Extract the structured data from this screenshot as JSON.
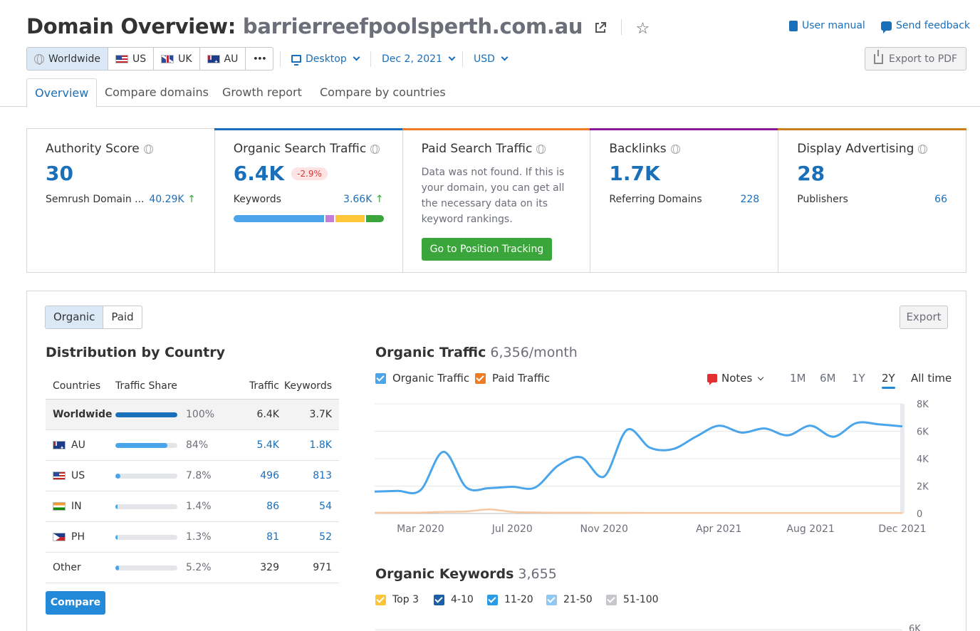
{
  "header": {
    "title_prefix": "Domain Overview:",
    "domain": "barrierreefpoolsperth.com.au",
    "user_manual": "User manual",
    "send_feedback": "Send feedback",
    "export_pdf": "Export to PDF"
  },
  "regions": [
    {
      "label": "Worldwide",
      "icon": "globe-icon",
      "active": true
    },
    {
      "label": "US",
      "icon": "flag-us"
    },
    {
      "label": "UK",
      "icon": "flag-uk"
    },
    {
      "label": "AU",
      "icon": "flag-au"
    },
    {
      "label": "•••",
      "icon": "more-icon"
    }
  ],
  "filters": {
    "device": "Desktop",
    "date": "Dec 2, 2021",
    "currency": "USD"
  },
  "tabs": [
    "Overview",
    "Compare domains",
    "Growth report",
    "Compare by countries"
  ],
  "cards": {
    "authority": {
      "title": "Authority Score",
      "value": "30",
      "row_label": "Semrush Domain ...",
      "row_value": "40.29K",
      "row_arrow": "↑"
    },
    "organic": {
      "title": "Organic Search Traffic",
      "value": "6.4K",
      "change": "-2.9%",
      "row_label": "Keywords",
      "row_value": "3.66K",
      "row_arrow": "↑"
    },
    "paid": {
      "title": "Paid Search Traffic",
      "text": "Data was not found. If this is your domain, you can get all the necessary data on its keyword rankings.",
      "button": "Go to Position Tracking"
    },
    "backlinks": {
      "title": "Backlinks",
      "value": "1.7K",
      "row_label": "Referring Domains",
      "row_value": "228"
    },
    "display": {
      "title": "Display Advertising",
      "value": "28",
      "row_label": "Publishers",
      "row_value": "66"
    }
  },
  "colors": {
    "accent": "#1a6fb9",
    "organic_bar": "#1a6fb9",
    "paid_bar": "#f07b25",
    "backlinks_bar": "#8b1a9a",
    "display_bar": "#c67f1a",
    "keyword_stack": [
      "#4aa5ea",
      "#c57ed8",
      "#fcc53a",
      "#3aa53a"
    ]
  },
  "keyword_stack_share": [
    0.62,
    0.06,
    0.2,
    0.12
  ],
  "panel": {
    "seg": [
      "Organic",
      "Paid"
    ],
    "export": "Export",
    "dist_title": "Distribution by Country",
    "compare": "Compare",
    "columns": [
      "Countries",
      "Traffic Share",
      "Traffic",
      "Keywords"
    ],
    "rows": [
      {
        "country": "Worldwide",
        "flag": "",
        "share": 1.0,
        "pct": "100%",
        "traffic": "6.4K",
        "keywords": "3.7K",
        "bar_color": "#1a6fb9"
      },
      {
        "country": "AU",
        "flag": "flag-au",
        "share": 0.84,
        "pct": "84%",
        "traffic": "5.4K",
        "keywords": "1.8K"
      },
      {
        "country": "US",
        "flag": "flag-us",
        "share": 0.078,
        "pct": "7.8%",
        "traffic": "496",
        "keywords": "813"
      },
      {
        "country": "IN",
        "flag": "flag-in",
        "share": 0.014,
        "pct": "1.4%",
        "traffic": "86",
        "keywords": "54"
      },
      {
        "country": "PH",
        "flag": "flag-ph",
        "share": 0.013,
        "pct": "1.3%",
        "traffic": "81",
        "keywords": "52"
      },
      {
        "country": "Other",
        "flag": "",
        "share": 0.052,
        "pct": "5.2%",
        "traffic": "329",
        "keywords": "971"
      }
    ]
  },
  "organic_traffic": {
    "title": "Organic Traffic",
    "subtitle": "6,356/month",
    "legend": [
      "Organic Traffic",
      "Paid Traffic"
    ],
    "notes": "Notes",
    "ranges": [
      "1M",
      "6M",
      "1Y",
      "2Y",
      "All time"
    ],
    "active_range": "2Y"
  },
  "chart_data": {
    "type": "line",
    "x": [
      "2020-01",
      "2020-02",
      "2020-03",
      "2020-04",
      "2020-05",
      "2020-06",
      "2020-07",
      "2020-08",
      "2020-09",
      "2020-10",
      "2020-11",
      "2020-12",
      "2021-01",
      "2021-02",
      "2021-03",
      "2021-04",
      "2021-05",
      "2021-06",
      "2021-07",
      "2021-08",
      "2021-09",
      "2021-10",
      "2021-11",
      "2021-12"
    ],
    "x_tick_labels": [
      "Mar 2020",
      "Jul 2020",
      "Nov 2020",
      "Apr 2021",
      "Aug 2021",
      "Dec 2021"
    ],
    "series": [
      {
        "name": "Organic Traffic",
        "color": "#4aa5ea",
        "values": [
          1600,
          1650,
          1700,
          4500,
          1900,
          1850,
          1950,
          1900,
          3500,
          4100,
          2700,
          6100,
          4800,
          4700,
          5600,
          6400,
          5900,
          6200,
          5700,
          6400,
          5600,
          6600,
          6500,
          6356
        ]
      },
      {
        "name": "Paid Traffic",
        "color": "#f07b25",
        "values": [
          50,
          60,
          70,
          120,
          150,
          300,
          120,
          80,
          60,
          60,
          50,
          50,
          40,
          40,
          40,
          40,
          30,
          30,
          30,
          30,
          30,
          30,
          30,
          30
        ]
      }
    ],
    "ylim": [
      0,
      8000
    ],
    "y_ticks": [
      "8K",
      "6K",
      "4K",
      "2K",
      "0"
    ],
    "grid": true
  },
  "organic_keywords": {
    "title": "Organic Keywords",
    "subtitle": "3,655",
    "legend": [
      {
        "label": "Top 3",
        "color": "#fcc53a"
      },
      {
        "label": "4-10",
        "color": "#1a5fa8"
      },
      {
        "label": "11-20",
        "color": "#2b9be6"
      },
      {
        "label": "21-50",
        "color": "#8fc8f2"
      },
      {
        "label": "51-100",
        "color": "#c5c7cb"
      }
    ],
    "partial_tick": "6K"
  }
}
